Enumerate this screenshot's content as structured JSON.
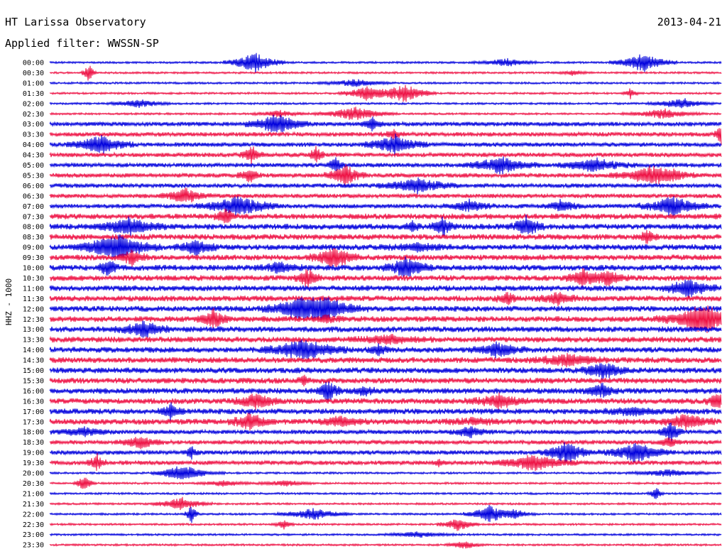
{
  "header": {
    "station": "HT Larissa Observatory",
    "date": "2013-04-21",
    "filter": "Applied filter: WWSSN-SP"
  },
  "chart_data": {
    "type": "line",
    "title": "HT Larissa Observatory",
    "subtitle": "Applied filter: WWSSN-SP",
    "date": "2013-04-21",
    "ylabel": "HHZ - 1000",
    "xlabel": "",
    "colors": [
      "#0000dd",
      "#ee1144"
    ],
    "grid": false,
    "legend": "none",
    "rows": [
      {
        "time": "00:00"
      },
      {
        "time": "00:30"
      },
      {
        "time": "01:00"
      },
      {
        "time": "01:30"
      },
      {
        "time": "02:00"
      },
      {
        "time": "02:30"
      },
      {
        "time": "03:00"
      },
      {
        "time": "03:30"
      },
      {
        "time": "04:00"
      },
      {
        "time": "04:30"
      },
      {
        "time": "05:00"
      },
      {
        "time": "05:30"
      },
      {
        "time": "06:00"
      },
      {
        "time": "06:30"
      },
      {
        "time": "07:00"
      },
      {
        "time": "07:30"
      },
      {
        "time": "08:00"
      },
      {
        "time": "08:30"
      },
      {
        "time": "09:00"
      },
      {
        "time": "09:30"
      },
      {
        "time": "10:00"
      },
      {
        "time": "10:30"
      },
      {
        "time": "11:00"
      },
      {
        "time": "11:30"
      },
      {
        "time": "12:00"
      },
      {
        "time": "12:30"
      },
      {
        "time": "13:00"
      },
      {
        "time": "13:30"
      },
      {
        "time": "14:00"
      },
      {
        "time": "14:30"
      },
      {
        "time": "15:00"
      },
      {
        "time": "15:30"
      },
      {
        "time": "16:00"
      },
      {
        "time": "16:30"
      },
      {
        "time": "17:00"
      },
      {
        "time": "17:30"
      },
      {
        "time": "18:00"
      },
      {
        "time": "18:30"
      },
      {
        "time": "19:00"
      },
      {
        "time": "19:30"
      },
      {
        "time": "20:00"
      },
      {
        "time": "20:30"
      },
      {
        "time": "21:00"
      },
      {
        "time": "21:30"
      },
      {
        "time": "22:00"
      },
      {
        "time": "22:30"
      },
      {
        "time": "23:00"
      },
      {
        "time": "23:30"
      }
    ]
  }
}
